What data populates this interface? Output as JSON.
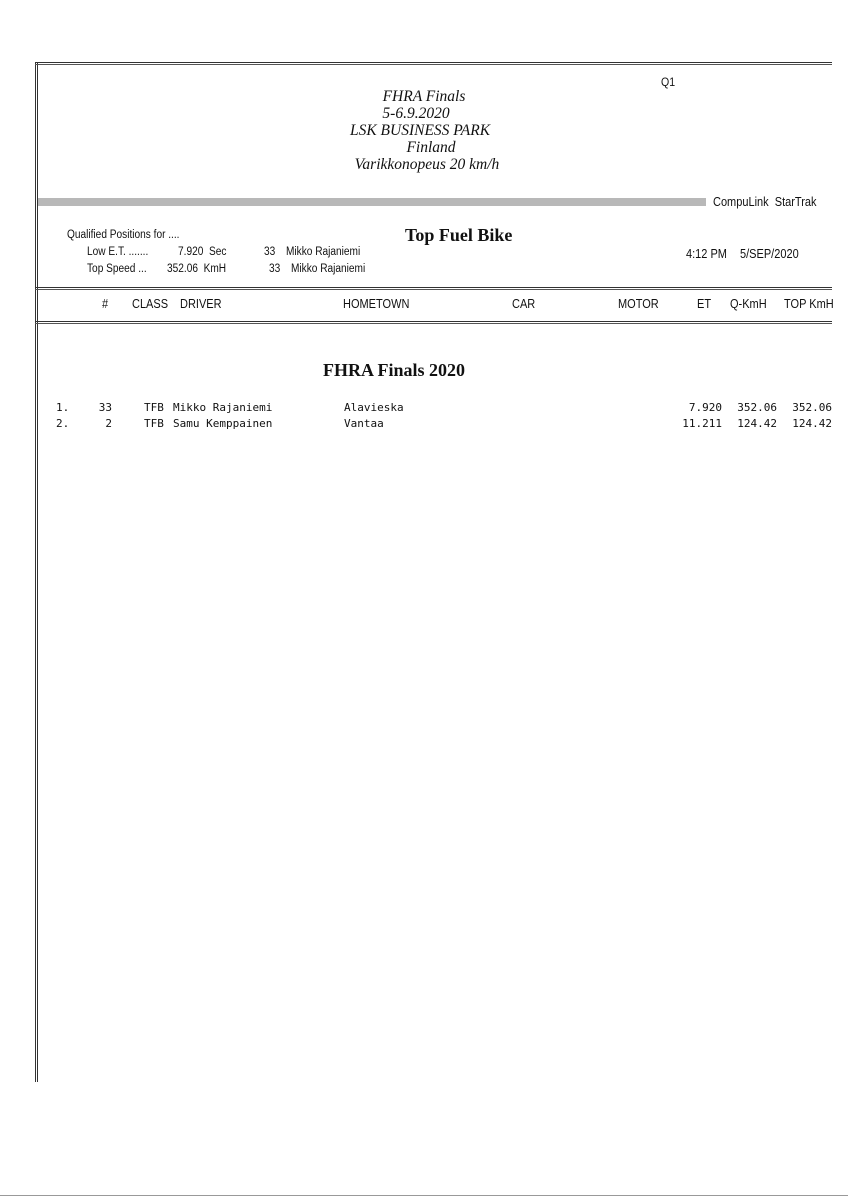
{
  "header": {
    "session": "Q1",
    "event_lines": [
      "FHRA Finals",
      "5-6.9.2020",
      "LSK BUSINESS PARK",
      "Finland",
      "Varikkonopeus 20 km/h"
    ],
    "system": "CompuLink  StarTrak"
  },
  "qualified": {
    "label": "Qualified Positions for ....",
    "low_et": {
      "label": "Low E.T. .......",
      "value": "7.920  Sec",
      "car": "33",
      "driver": "Mikko Rajaniemi"
    },
    "top_speed": {
      "label": "Top Speed ...",
      "value": "352.06  KmH",
      "car": "33",
      "driver": "Mikko Rajaniemi"
    }
  },
  "class_title": "Top Fuel Bike",
  "time": "4:12 PM",
  "date": "5/SEP/2020",
  "columns": [
    "#",
    "CLASS",
    "DRIVER",
    "HOMETOWN",
    "CAR",
    "MOTOR",
    "ET",
    "Q-KmH",
    "TOP KmH"
  ],
  "section_title": "FHRA Finals 2020",
  "rows": [
    {
      "pos": "1.",
      "num": "33",
      "class": "TFB",
      "driver": "Mikko Rajaniemi",
      "hometown": "Alavieska",
      "et": "7.920",
      "qkmh": "352.06",
      "topkmh": "352.06"
    },
    {
      "pos": "2.",
      "num": "2",
      "class": "TFB",
      "driver": "Samu Kemppainen",
      "hometown": "Vantaa",
      "et": "11.211",
      "qkmh": "124.42",
      "topkmh": "124.42"
    }
  ]
}
